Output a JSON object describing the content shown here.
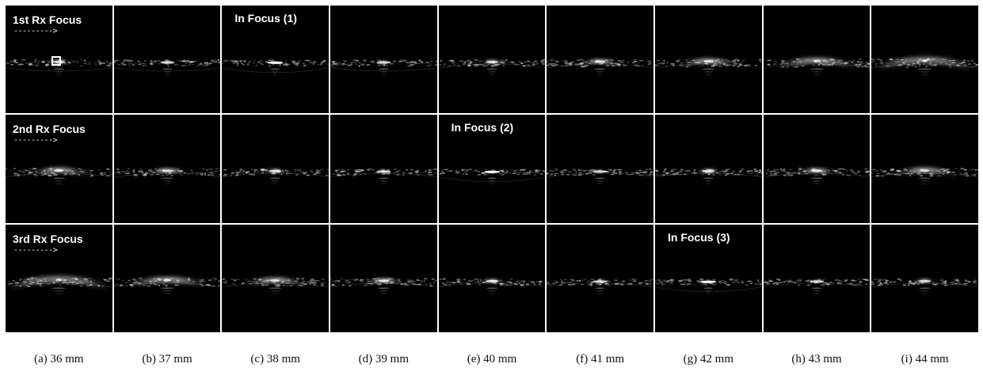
{
  "rows": [
    {
      "label": "1st Rx Focus",
      "arrow": "--------->",
      "focus_col": 2,
      "focus_label": "In Focus (1)"
    },
    {
      "label": "2nd Rx Focus",
      "arrow": "--------->",
      "focus_col": 4,
      "focus_label": "In Focus (2)"
    },
    {
      "label": "3rd Rx Focus",
      "arrow": "--------->",
      "focus_col": 6,
      "focus_label": "In Focus (3)"
    }
  ],
  "captions": [
    "(a) 36 mm",
    "(b) 37 mm",
    "(c) 38 mm",
    "(d) 39 mm",
    "(e) 40 mm",
    "(f) 41 mm",
    "(g) 42 mm",
    "(h) 43 mm",
    "(i) 44 mm"
  ],
  "colors": {
    "background": "#000000",
    "signal": "#ffffff",
    "separator": "#ffffff"
  }
}
